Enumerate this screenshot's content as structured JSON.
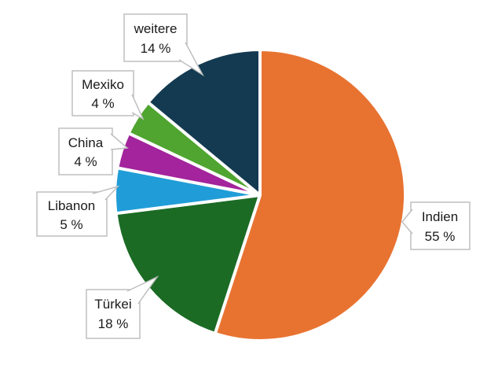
{
  "chart_data": {
    "type": "pie",
    "title": "",
    "unit": "%",
    "start_angle_deg": 0,
    "direction": "clockwise",
    "background_color": "#FFFFFF",
    "separator_color": "#FFFFFF",
    "legend_position": "callouts",
    "callout_style": {
      "fill": "#FFFFFF",
      "border": "#BFBFBF",
      "text_color": "#1A1A1A"
    },
    "slices": [
      {
        "label": "Indien",
        "value": 55,
        "display": "55 %",
        "color": "#E87331"
      },
      {
        "label": "Türkei",
        "value": 18,
        "display": "18 %",
        "color": "#1B6B25"
      },
      {
        "label": "Libanon",
        "value": 5,
        "display": "5 %",
        "color": "#209DD8"
      },
      {
        "label": "China",
        "value": 4,
        "display": "4 %",
        "color": "#A3249C"
      },
      {
        "label": "Mexiko",
        "value": 4,
        "display": "4 %",
        "color": "#4FA52F"
      },
      {
        "label": "weitere",
        "value": 14,
        "display": "14 %",
        "color": "#133A50"
      }
    ]
  }
}
